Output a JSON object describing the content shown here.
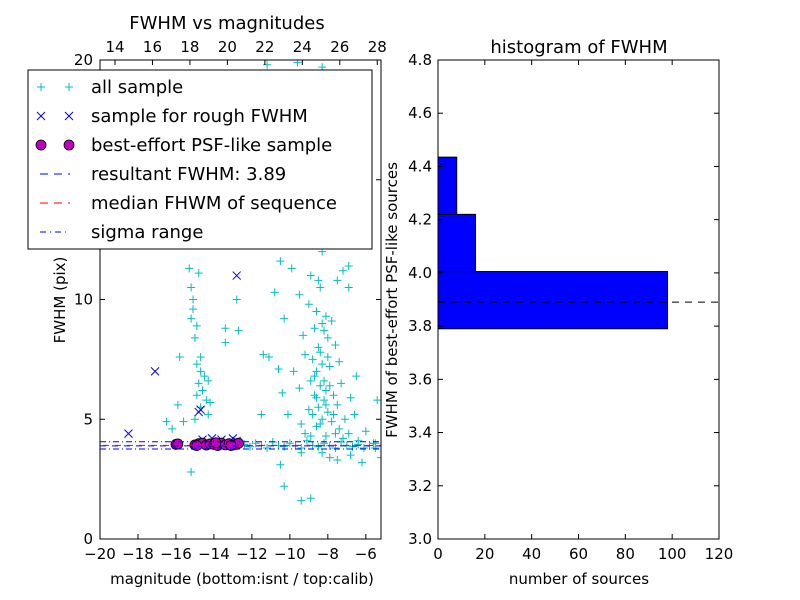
{
  "chart_data": [
    {
      "type": "scatter",
      "title": "FWHM vs magnitudes",
      "xlabel": "magnitude (bottom:isnt / top:calib)",
      "ylabel": "FWHM (pix)",
      "xlim": [
        -20,
        -5.2
      ],
      "ylim": [
        0,
        20
      ],
      "xticks": [
        -20,
        -18,
        -16,
        -14,
        -12,
        -10,
        -8,
        -6
      ],
      "xtick_labels": [
        "−20",
        "−18",
        "−16",
        "−14",
        "−12",
        "−10",
        "−8",
        "−6"
      ],
      "yticks": [
        0,
        5,
        10,
        15,
        20
      ],
      "ytick_labels": [
        "0",
        "5",
        "10",
        "15",
        "20"
      ],
      "top_xlim": [
        13.2,
        28.2
      ],
      "top_xticks": [
        14,
        16,
        18,
        20,
        22,
        24,
        26,
        28
      ],
      "top_xtick_labels": [
        "14",
        "16",
        "18",
        "20",
        "22",
        "24",
        "26",
        "28"
      ],
      "legend_position": "upper-left",
      "series": [
        {
          "name": "all sample",
          "marker": "plus",
          "color": "#00bfbf",
          "points": [
            [
              -15.3,
              11.3
            ],
            [
              -14.8,
              11.1
            ],
            [
              -15.2,
              10.5
            ],
            [
              -15.1,
              10.0
            ],
            [
              -15.1,
              9.6
            ],
            [
              -15.2,
              9.2
            ],
            [
              -14.9,
              8.9
            ],
            [
              -15.0,
              8.4
            ],
            [
              -14.7,
              7.6
            ],
            [
              -14.9,
              7.3
            ],
            [
              -14.7,
              7.0
            ],
            [
              -14.5,
              6.8
            ],
            [
              -14.8,
              6.5
            ],
            [
              -14.3,
              6.6
            ],
            [
              -14.6,
              6.2
            ],
            [
              -14.9,
              6.0
            ],
            [
              -14.4,
              5.8
            ],
            [
              -14.7,
              5.5
            ],
            [
              -14.2,
              5.7
            ],
            [
              -15.0,
              5.0
            ],
            [
              -15.6,
              4.9
            ],
            [
              -14.3,
              5.2
            ],
            [
              -15.9,
              5.6
            ],
            [
              -16.2,
              4.6
            ],
            [
              -16.5,
              4.9
            ],
            [
              -15.2,
              2.8
            ],
            [
              -13.4,
              8.8
            ],
            [
              -13.4,
              8.2
            ],
            [
              -15.8,
              7.6
            ],
            [
              -12.7,
              8.7
            ],
            [
              -12.8,
              10.0
            ],
            [
              -11.2,
              19.8
            ],
            [
              -9.6,
              19.9
            ],
            [
              -8.3,
              19.7
            ],
            [
              -9.1,
              15.0
            ],
            [
              -10.2,
              14.0
            ],
            [
              -9.8,
              13.5
            ],
            [
              -8.8,
              13.0
            ],
            [
              -9.6,
              12.4
            ],
            [
              -8.3,
              12.0
            ],
            [
              -10.5,
              11.6
            ],
            [
              -9.9,
              11.3
            ],
            [
              -8.9,
              11.0
            ],
            [
              -8.5,
              10.8
            ],
            [
              -7.5,
              10.8
            ],
            [
              -6.9,
              10.5
            ],
            [
              -9.5,
              10.2
            ],
            [
              -8.4,
              10.5
            ],
            [
              -10.8,
              10.3
            ],
            [
              -7.2,
              11.2
            ],
            [
              -6.9,
              11.4
            ],
            [
              -9.0,
              9.8
            ],
            [
              -8.6,
              9.5
            ],
            [
              -8.1,
              9.3
            ],
            [
              -8.3,
              9.0
            ],
            [
              -7.8,
              9.1
            ],
            [
              -8.7,
              8.8
            ],
            [
              -10.3,
              9.2
            ],
            [
              -9.3,
              8.5
            ],
            [
              -8.0,
              8.4
            ],
            [
              -8.5,
              8.0
            ],
            [
              -7.6,
              8.1
            ],
            [
              -11.4,
              7.7
            ],
            [
              -11.1,
              7.6
            ],
            [
              -9.2,
              7.7
            ],
            [
              -8.8,
              7.5
            ],
            [
              -8.3,
              7.3
            ],
            [
              -8.6,
              7.0
            ],
            [
              -7.9,
              7.2
            ],
            [
              -7.4,
              7.4
            ],
            [
              -10.6,
              7.1
            ],
            [
              -9.8,
              7.0
            ],
            [
              -6.5,
              6.8
            ],
            [
              -8.9,
              6.6
            ],
            [
              -8.4,
              6.4
            ],
            [
              -8.1,
              6.2
            ],
            [
              -8.7,
              6.0
            ],
            [
              -7.7,
              6.0
            ],
            [
              -10.4,
              6.1
            ],
            [
              -9.5,
              6.3
            ],
            [
              -7.3,
              6.5
            ],
            [
              -8.2,
              5.8
            ],
            [
              -8.5,
              5.5
            ],
            [
              -8.0,
              5.3
            ],
            [
              -7.5,
              5.6
            ],
            [
              -9.0,
              5.4
            ],
            [
              -6.8,
              5.9
            ],
            [
              -10.1,
              5.2
            ],
            [
              -11.5,
              5.2
            ],
            [
              -8.3,
              5.0
            ],
            [
              -7.8,
              4.9
            ],
            [
              -7.1,
              5.0
            ],
            [
              -6.6,
              5.2
            ],
            [
              -9.4,
              4.8
            ],
            [
              -8.6,
              4.7
            ],
            [
              -7.4,
              4.6
            ],
            [
              -6.0,
              4.5
            ],
            [
              -5.4,
              5.8
            ],
            [
              -5.6,
              4.0
            ],
            [
              -5.2,
              3.4
            ],
            [
              -6.8,
              3.5
            ],
            [
              -7.5,
              3.3
            ],
            [
              -7.9,
              3.4
            ],
            [
              -8.3,
              3.6
            ],
            [
              -9.4,
              3.6
            ],
            [
              -10.3,
              2.2
            ],
            [
              -9.4,
              1.6
            ],
            [
              -8.9,
              1.7
            ],
            [
              -10.5,
              3.1
            ],
            [
              -6.2,
              3.2
            ],
            [
              -5.5,
              3.8
            ],
            [
              -8.2,
              8.7
            ],
            [
              -8.4,
              7.8
            ],
            [
              -8.0,
              7.6
            ],
            [
              -8.7,
              6.8
            ],
            [
              -8.2,
              6.6
            ],
            [
              -7.9,
              6.4
            ],
            [
              -8.6,
              5.9
            ],
            [
              -8.1,
              5.6
            ],
            [
              -7.7,
              5.2
            ],
            [
              -8.8,
              5.2
            ],
            [
              -8.4,
              4.8
            ],
            [
              -7.6,
              4.4
            ],
            [
              -8.1,
              4.3
            ],
            [
              -7.2,
              4.2
            ],
            [
              -6.9,
              4.4
            ],
            [
              -6.4,
              4.1
            ],
            [
              -8.9,
              4.3
            ],
            [
              -9.2,
              4.4
            ],
            [
              -12.4,
              3.95
            ],
            [
              -12.1,
              3.85
            ],
            [
              -11.8,
              4.0
            ],
            [
              -11.5,
              3.9
            ],
            [
              -11.2,
              3.8
            ],
            [
              -10.9,
              4.05
            ],
            [
              -10.6,
              3.9
            ],
            [
              -10.3,
              3.85
            ],
            [
              -10.0,
              4.0
            ],
            [
              -9.7,
              3.9
            ],
            [
              -9.4,
              3.8
            ],
            [
              -9.1,
              4.1
            ],
            [
              -8.8,
              3.9
            ],
            [
              -8.5,
              3.85
            ],
            [
              -8.2,
              4.0
            ],
            [
              -7.9,
              3.9
            ],
            [
              -7.6,
              3.8
            ],
            [
              -7.3,
              4.05
            ],
            [
              -7.0,
              3.9
            ],
            [
              -6.7,
              3.85
            ],
            [
              -6.4,
              3.95
            ],
            [
              -6.1,
              3.8
            ],
            [
              -5.8,
              3.9
            ],
            [
              -5.5,
              4.0
            ]
          ]
        },
        {
          "name": "sample for rough FWHM",
          "marker": "x",
          "color": "#0000ff",
          "points": [
            [
              -18.5,
              4.4
            ],
            [
              -17.1,
              7.0
            ],
            [
              -14.8,
              5.3
            ],
            [
              -14.7,
              5.4
            ],
            [
              -12.8,
              11.0
            ],
            [
              -14.6,
              4.15
            ],
            [
              -14.1,
              4.2
            ],
            [
              -13.6,
              4.15
            ],
            [
              -13.0,
              4.2
            ],
            [
              -12.8,
              4.1
            ]
          ]
        },
        {
          "name": "best-effort PSF-like sample",
          "marker": "circle",
          "color": "#bf00bf",
          "points": [
            [
              -16.0,
              3.95
            ],
            [
              -15.9,
              3.97
            ],
            [
              -15.0,
              3.93
            ],
            [
              -14.8,
              3.98
            ],
            [
              -14.6,
              4.0
            ],
            [
              -14.4,
              3.92
            ],
            [
              -14.2,
              3.97
            ],
            [
              -14.0,
              3.95
            ],
            [
              -13.8,
              3.9
            ],
            [
              -13.6,
              4.0
            ],
            [
              -13.4,
              3.93
            ],
            [
              -13.2,
              3.98
            ],
            [
              -13.0,
              3.92
            ],
            [
              -12.8,
              3.95
            ],
            [
              -12.7,
              4.0
            ],
            [
              -14.9,
              3.9
            ],
            [
              -13.9,
              4.02
            ],
            [
              -13.1,
              3.9
            ]
          ]
        }
      ],
      "hlines": [
        {
          "name": "resultant FWHM: 3.89",
          "y": 3.89,
          "style": "dashed",
          "color": "#0000ff"
        },
        {
          "name": "median FHWM of sequence",
          "y": 3.91,
          "style": "dashed",
          "color": "#ff0000"
        },
        {
          "name": "sigma range",
          "y": [
            3.76,
            4.06
          ],
          "style": "dashdot",
          "color": "#0000ff"
        }
      ],
      "legend": [
        "all sample",
        "sample for rough FWHM",
        "best-effort PSF-like sample",
        "resultant FWHM: 3.89",
        "median FHWM of sequence",
        "sigma range"
      ]
    },
    {
      "type": "bar",
      "orientation": "horizontal",
      "title": "histogram of FWHM",
      "xlabel": "number of sources",
      "ylabel": "FWHM of best-effort PSF-like sources",
      "xlim": [
        0,
        120
      ],
      "ylim": [
        3.0,
        4.8
      ],
      "xticks": [
        0,
        20,
        40,
        60,
        80,
        100,
        120
      ],
      "xtick_labels": [
        "0",
        "20",
        "40",
        "60",
        "80",
        "100",
        "120"
      ],
      "yticks": [
        3.0,
        3.2,
        3.4,
        3.6,
        3.8,
        4.0,
        4.2,
        4.4,
        4.6,
        4.8
      ],
      "ytick_labels": [
        "3.0",
        "3.2",
        "3.4",
        "3.6",
        "3.8",
        "4.0",
        "4.2",
        "4.4",
        "4.6",
        "4.8"
      ],
      "bins": [
        [
          3.79,
          4.005
        ],
        [
          4.005,
          4.22
        ],
        [
          4.22,
          4.435
        ]
      ],
      "values": [
        98,
        16,
        8
      ],
      "bar_color": "#0000ff",
      "hline": 3.89
    }
  ]
}
